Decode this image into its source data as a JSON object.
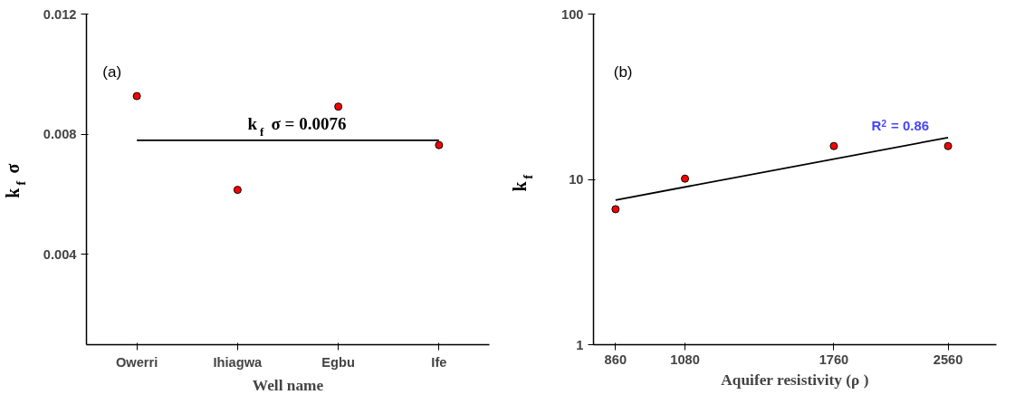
{
  "chart_data": [
    {
      "type": "scatter",
      "xlabel": "Well name",
      "ylabel": "k$_{f}$σ",
      "categories": [
        "Owerri",
        "Ihiagwa",
        "Egbu",
        "Ife"
      ],
      "series": [
        {
          "color": "#ff0000",
          "values": [
            0.00927,
            0.00615,
            0.00892,
            0.00764
          ]
        },
        {
          "type": "line",
          "marker": "none",
          "color": "#000000",
          "values": [
            0.0078,
            0.0078,
            0.0078,
            0.0078
          ]
        }
      ],
      "ylim": [
        0.001,
        0.012
      ],
      "yticks": [
        0.004,
        0.008,
        0.012
      ],
      "annotations": [
        "(a)",
        "k$_{f}$σ = 0.0076"
      ],
      "grid": false,
      "marker": "circle"
    },
    {
      "type": "scatter",
      "xlabel": "Aquifer resistivity (ρ )",
      "ylabel": "k$_{f}$",
      "series": [
        {
          "color": "#ff0000",
          "x": [
            860,
            1080,
            1760,
            2560
          ],
          "values": [
            6.6,
            10.1,
            15.9,
            15.9
          ]
        },
        {
          "type": "line",
          "marker": "none",
          "color": "#000000",
          "x": [
            860,
            2560
          ],
          "values": [
            7.5,
            17.9
          ]
        }
      ],
      "log": "xy",
      "xlim": [
        800,
        3000
      ],
      "xticks": [
        860,
        1080,
        1760,
        2560
      ],
      "ylim": [
        1,
        100
      ],
      "yticks": [
        1,
        10,
        100
      ],
      "annotations": [
        "(b)",
        "R$^{2}$ = 0.86"
      ],
      "grid": false,
      "marker": "circle"
    }
  ]
}
